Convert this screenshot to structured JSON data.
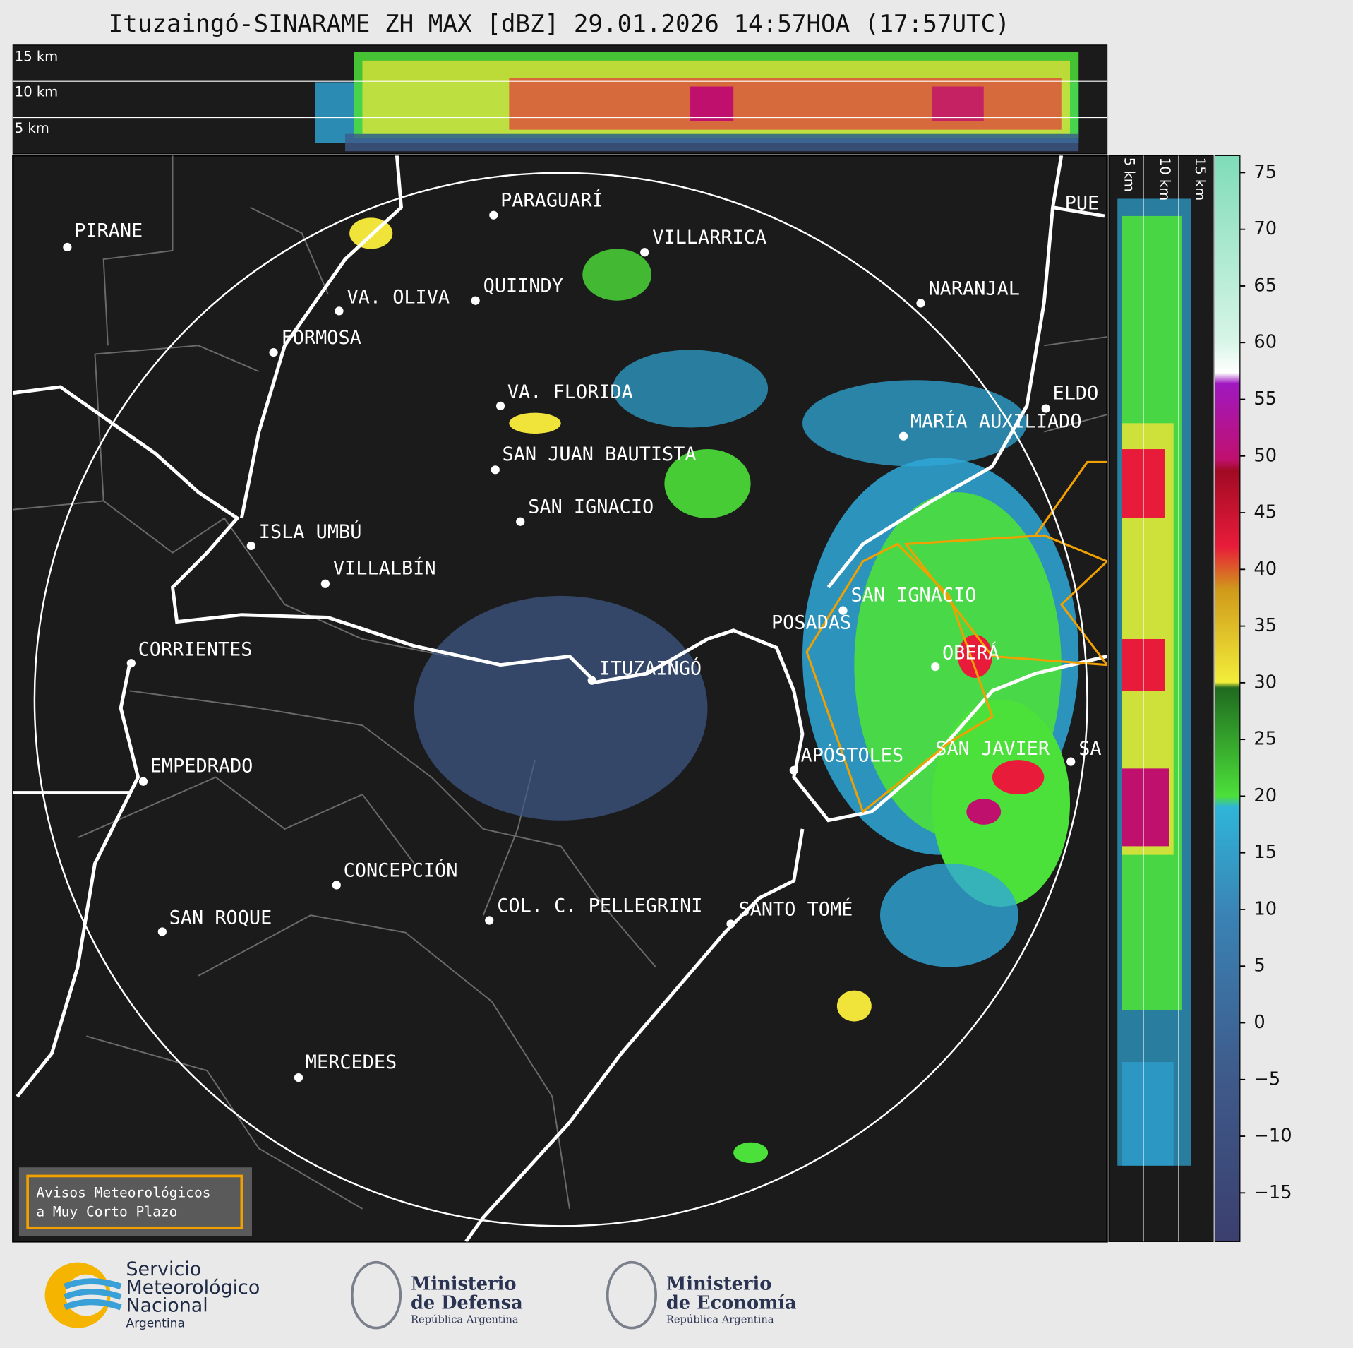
{
  "title": "Ituzaingó-SINARAME ZH MAX [dBZ] 29.01.2026 14:57HOA (17:57UTC)",
  "height_labels": [
    "15 km",
    "10 km",
    "5 km"
  ],
  "side_height_labels": [
    "5 km",
    "10 km",
    "15 km"
  ],
  "cities": [
    "PIRANE",
    "PARAGUARÍ",
    "VILLARRICA",
    "VA. OLIVA",
    "QUIINDY",
    "NARANJAL",
    "FORMOSA",
    "VA. FLORIDA",
    "ELDO",
    "MARÍA AUXILIADO",
    "SAN JUAN BAUTISTA",
    "SAN IGNACIO",
    "ISLA UMBÚ",
    "VILLALBÍN",
    "SAN IGNACIO",
    "POSADAS",
    "CORRIENTES",
    "ITUZAINGÓ",
    "OBERÁ",
    "EMPEDRADO",
    "APÓSTOLES",
    "SAN JAVIER",
    "SA",
    "CONCEPCIÓN",
    "COL. C. PELLEGRINI",
    "SANTO TOMÉ",
    "SAN ROQUE",
    "MERCEDES",
    "PUE"
  ],
  "colorbar": {
    "lim": [
      -19.3,
      76.5
    ],
    "ticks": [
      75,
      70,
      65,
      60,
      55,
      50,
      45,
      40,
      35,
      30,
      25,
      20,
      15,
      10,
      5,
      0,
      {
        "value": -5,
        "label": "−5"
      },
      {
        "value": -10,
        "label": "−10"
      },
      {
        "value": -15,
        "label": "−15"
      }
    ]
  },
  "warning_box": [
    "Avisos Meteorológicos",
    "a Muy Corto Plazo"
  ],
  "logos": {
    "smn": [
      "Servicio",
      "Meteorológico",
      "Nacional",
      "Argentina"
    ],
    "defensa": [
      "Ministerio",
      "de Defensa",
      "República Argentina"
    ],
    "economia": [
      "Ministerio",
      "de Economía",
      "República Argentina"
    ]
  }
}
